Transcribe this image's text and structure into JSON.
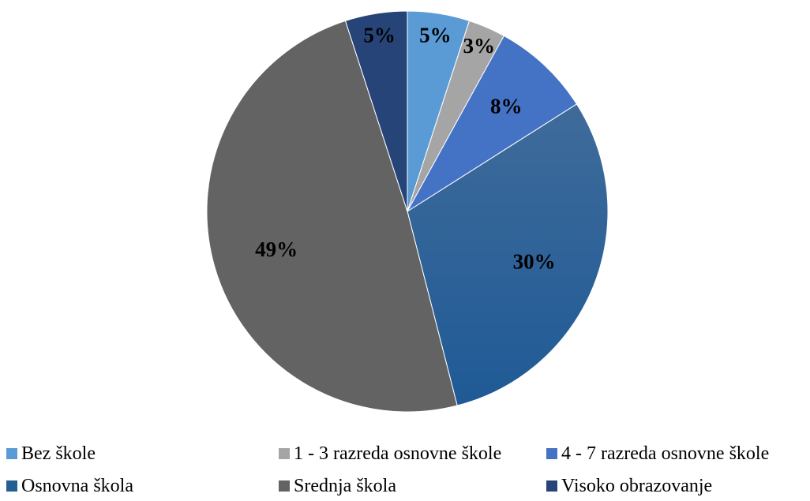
{
  "chart_data": {
    "type": "pie",
    "title": "",
    "slices": [
      {
        "label": "Bez škole",
        "value": 5,
        "display": "5%",
        "color": "#5b9bd5"
      },
      {
        "label": "1 - 3 razreda osnovne škole",
        "value": 3,
        "display": "3%",
        "color": "#a5a5a5"
      },
      {
        "label": "4 - 7 razreda osnovne škole",
        "value": 8,
        "display": "8%",
        "color": "#4472c4"
      },
      {
        "label": "Osnovna škola",
        "value": 30,
        "display": "30%",
        "color": "#255e91"
      },
      {
        "label": "Srednja škola",
        "value": 49,
        "display": "49%",
        "color": "#636363"
      },
      {
        "label": "Visoko obrazovanje",
        "value": 5,
        "display": "5%",
        "color": "#264478"
      }
    ],
    "legend_position": "bottom"
  }
}
